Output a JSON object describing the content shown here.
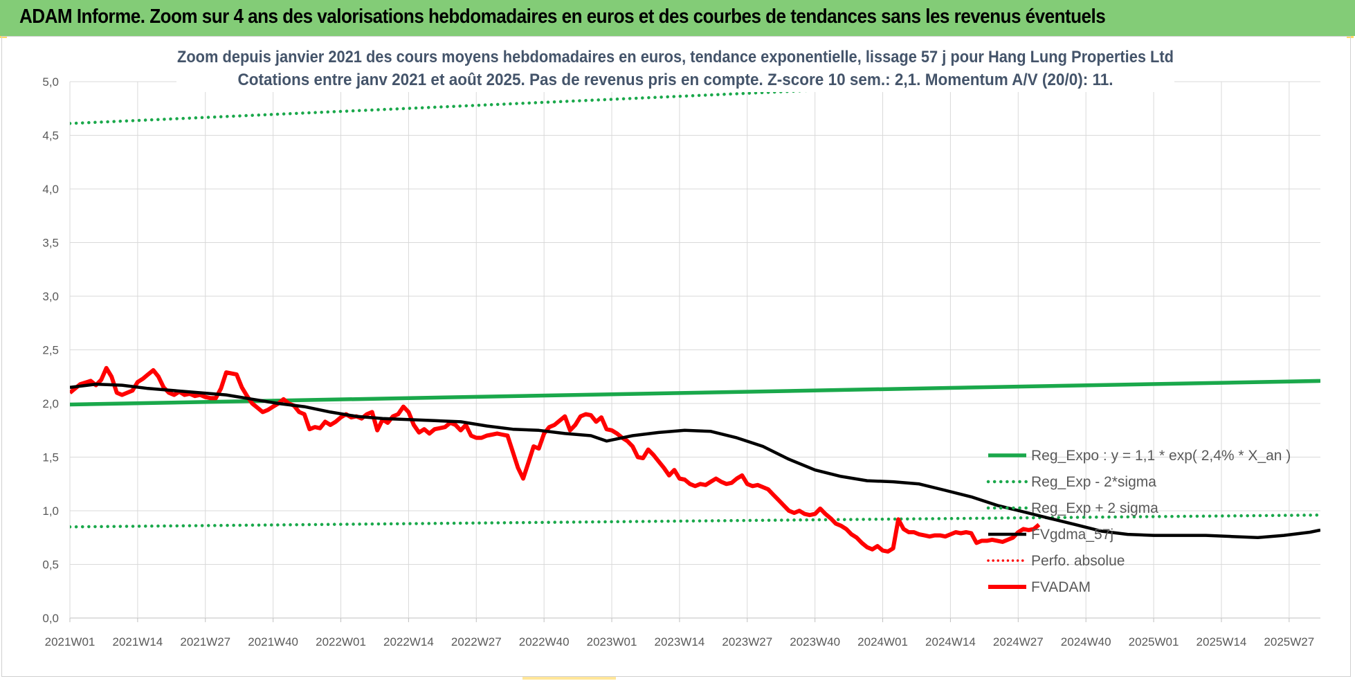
{
  "banner": {
    "title": "ADAM Informe. Zoom sur 4 ans des valorisations hebdomadaires en euros et des courbes de tendances sans les revenus éventuels"
  },
  "colors": {
    "banner_bg": "#83cc77",
    "trend_green": "#1aa84b",
    "smooth_black": "#000000",
    "price_red": "#ff0000",
    "perfo_red": "#ff0000",
    "title_text": "#44546a"
  },
  "chart_data": {
    "type": "line",
    "title_lines": [
      "Zoom depuis janvier 2021 des cours moyens hebdomadaires en euros, tendance exponentielle, lissage 57 j pour Hang Lung Properties Ltd",
      "Cotations entre janv 2021 et août 2025.  Pas de revenus pris en compte. Z-score 10 sem.: 2,1. Momentum A/V (20/0): 11."
    ],
    "x_tick_labels": [
      "2021W01",
      "2021W14",
      "2021W27",
      "2021W40",
      "2022W01",
      "2022W14",
      "2022W27",
      "2022W40",
      "2023W01",
      "2023W14",
      "2023W27",
      "2023W40",
      "2024W01",
      "2024W14",
      "2024W27",
      "2024W40",
      "2025W01",
      "2025W14",
      "2025W27"
    ],
    "y_tick_labels": [
      "0,0",
      "0,5",
      "1,0",
      "1,5",
      "2,0",
      "2,5",
      "3,0",
      "3,5",
      "4,0",
      "4,5",
      "5,0"
    ],
    "ylim": [
      0,
      5
    ],
    "x_range_weeks": [
      0,
      240
    ],
    "grid": true,
    "legend_position": "right, lower-middle",
    "series": [
      {
        "name": "Reg_Expo : y = 1,1 * exp( 2,4% *  X_an )",
        "style": "solid-thick-green",
        "points": [
          [
            0,
            1.99
          ],
          [
            240,
            2.21
          ]
        ]
      },
      {
        "name": "Reg_Exp - 2*sigma",
        "style": "dotted-green",
        "points": [
          [
            0,
            0.85
          ],
          [
            240,
            0.96
          ]
        ]
      },
      {
        "name": "Reg_Exp + 2 sigma",
        "style": "dotted-green",
        "points": [
          [
            0,
            4.61
          ],
          [
            240,
            5.13
          ]
        ]
      },
      {
        "name": "FVgdma_57j",
        "style": "solid-black",
        "points": [
          [
            0,
            2.15
          ],
          [
            5,
            2.18
          ],
          [
            10,
            2.17
          ],
          [
            15,
            2.14
          ],
          [
            20,
            2.12
          ],
          [
            25,
            2.1
          ],
          [
            30,
            2.08
          ],
          [
            35,
            2.04
          ],
          [
            40,
            2.0
          ],
          [
            45,
            1.97
          ],
          [
            50,
            1.92
          ],
          [
            55,
            1.88
          ],
          [
            60,
            1.86
          ],
          [
            65,
            1.85
          ],
          [
            70,
            1.84
          ],
          [
            75,
            1.83
          ],
          [
            80,
            1.79
          ],
          [
            85,
            1.76
          ],
          [
            90,
            1.75
          ],
          [
            95,
            1.72
          ],
          [
            100,
            1.7
          ],
          [
            103,
            1.65
          ],
          [
            108,
            1.7
          ],
          [
            113,
            1.73
          ],
          [
            118,
            1.75
          ],
          [
            123,
            1.74
          ],
          [
            128,
            1.68
          ],
          [
            133,
            1.6
          ],
          [
            138,
            1.48
          ],
          [
            143,
            1.38
          ],
          [
            148,
            1.32
          ],
          [
            153,
            1.28
          ],
          [
            158,
            1.27
          ],
          [
            163,
            1.25
          ],
          [
            168,
            1.19
          ],
          [
            173,
            1.13
          ],
          [
            178,
            1.05
          ],
          [
            183,
            0.99
          ],
          [
            188,
            0.93
          ],
          [
            193,
            0.87
          ],
          [
            198,
            0.81
          ],
          [
            203,
            0.78
          ],
          [
            208,
            0.77
          ],
          [
            213,
            0.77
          ],
          [
            218,
            0.77
          ],
          [
            223,
            0.76
          ],
          [
            228,
            0.75
          ],
          [
            233,
            0.77
          ],
          [
            238,
            0.8
          ],
          [
            240,
            0.82
          ]
        ]
      },
      {
        "name": "Perfo. absolue",
        "style": "dotted-red",
        "points": []
      },
      {
        "name": "FVADAM",
        "style": "solid-thick-red",
        "points": [
          [
            0,
            2.1
          ],
          [
            2,
            2.18
          ],
          [
            4,
            2.21
          ],
          [
            5,
            2.17
          ],
          [
            6,
            2.22
          ],
          [
            7,
            2.33
          ],
          [
            8,
            2.25
          ],
          [
            9,
            2.1
          ],
          [
            10,
            2.08
          ],
          [
            11,
            2.1
          ],
          [
            12,
            2.12
          ],
          [
            13,
            2.2
          ],
          [
            14,
            2.23
          ],
          [
            15,
            2.27
          ],
          [
            16,
            2.31
          ],
          [
            17,
            2.25
          ],
          [
            18,
            2.15
          ],
          [
            19,
            2.1
          ],
          [
            20,
            2.08
          ],
          [
            21,
            2.11
          ],
          [
            22,
            2.08
          ],
          [
            23,
            2.09
          ],
          [
            24,
            2.07
          ],
          [
            25,
            2.08
          ],
          [
            26,
            2.06
          ],
          [
            27,
            2.05
          ],
          [
            28,
            2.05
          ],
          [
            29,
            2.14
          ],
          [
            30,
            2.29
          ],
          [
            31,
            2.28
          ],
          [
            32,
            2.27
          ],
          [
            33,
            2.15
          ],
          [
            34,
            2.07
          ],
          [
            35,
            2.0
          ],
          [
            36,
            1.96
          ],
          [
            37,
            1.92
          ],
          [
            38,
            1.94
          ],
          [
            39,
            1.97
          ],
          [
            40,
            2.0
          ],
          [
            41,
            2.04
          ],
          [
            42,
            2.0
          ],
          [
            43,
            1.98
          ],
          [
            44,
            1.92
          ],
          [
            45,
            1.9
          ],
          [
            46,
            1.76
          ],
          [
            47,
            1.78
          ],
          [
            48,
            1.77
          ],
          [
            49,
            1.83
          ],
          [
            50,
            1.8
          ],
          [
            51,
            1.83
          ],
          [
            52,
            1.87
          ],
          [
            53,
            1.9
          ],
          [
            54,
            1.87
          ],
          [
            55,
            1.88
          ],
          [
            56,
            1.86
          ],
          [
            57,
            1.9
          ],
          [
            58,
            1.92
          ],
          [
            59,
            1.75
          ],
          [
            60,
            1.85
          ],
          [
            61,
            1.82
          ],
          [
            62,
            1.88
          ],
          [
            63,
            1.9
          ],
          [
            64,
            1.97
          ],
          [
            65,
            1.92
          ],
          [
            66,
            1.8
          ],
          [
            67,
            1.73
          ],
          [
            68,
            1.76
          ],
          [
            69,
            1.72
          ],
          [
            70,
            1.76
          ],
          [
            71,
            1.77
          ],
          [
            72,
            1.78
          ],
          [
            73,
            1.82
          ],
          [
            74,
            1.8
          ],
          [
            75,
            1.75
          ],
          [
            76,
            1.8
          ],
          [
            77,
            1.7
          ],
          [
            78,
            1.68
          ],
          [
            79,
            1.68
          ],
          [
            80,
            1.7
          ],
          [
            81,
            1.71
          ],
          [
            82,
            1.72
          ],
          [
            83,
            1.71
          ],
          [
            84,
            1.7
          ],
          [
            85,
            1.55
          ],
          [
            86,
            1.4
          ],
          [
            87,
            1.3
          ],
          [
            88,
            1.45
          ],
          [
            89,
            1.6
          ],
          [
            90,
            1.58
          ],
          [
            91,
            1.72
          ],
          [
            92,
            1.78
          ],
          [
            93,
            1.8
          ],
          [
            94,
            1.84
          ],
          [
            95,
            1.88
          ],
          [
            96,
            1.75
          ],
          [
            97,
            1.8
          ],
          [
            98,
            1.88
          ],
          [
            99,
            1.9
          ],
          [
            100,
            1.89
          ],
          [
            101,
            1.83
          ],
          [
            102,
            1.87
          ],
          [
            103,
            1.76
          ],
          [
            104,
            1.75
          ],
          [
            105,
            1.72
          ],
          [
            106,
            1.68
          ],
          [
            107,
            1.65
          ],
          [
            108,
            1.6
          ],
          [
            109,
            1.5
          ],
          [
            110,
            1.49
          ],
          [
            111,
            1.57
          ],
          [
            112,
            1.52
          ],
          [
            113,
            1.46
          ],
          [
            114,
            1.4
          ],
          [
            115,
            1.33
          ],
          [
            116,
            1.38
          ],
          [
            117,
            1.3
          ],
          [
            118,
            1.29
          ],
          [
            119,
            1.25
          ],
          [
            120,
            1.23
          ],
          [
            121,
            1.25
          ],
          [
            122,
            1.24
          ],
          [
            123,
            1.27
          ],
          [
            124,
            1.3
          ],
          [
            125,
            1.27
          ],
          [
            126,
            1.25
          ],
          [
            127,
            1.26
          ],
          [
            128,
            1.3
          ],
          [
            129,
            1.33
          ],
          [
            130,
            1.25
          ],
          [
            131,
            1.23
          ],
          [
            132,
            1.24
          ],
          [
            133,
            1.22
          ],
          [
            134,
            1.2
          ],
          [
            135,
            1.15
          ],
          [
            136,
            1.1
          ],
          [
            137,
            1.05
          ],
          [
            138,
            1.0
          ],
          [
            139,
            0.98
          ],
          [
            140,
            1.0
          ],
          [
            141,
            0.97
          ],
          [
            142,
            0.96
          ],
          [
            143,
            0.97
          ],
          [
            144,
            1.02
          ],
          [
            145,
            0.97
          ],
          [
            146,
            0.93
          ],
          [
            147,
            0.88
          ],
          [
            148,
            0.86
          ],
          [
            149,
            0.83
          ],
          [
            150,
            0.78
          ],
          [
            151,
            0.75
          ],
          [
            152,
            0.7
          ],
          [
            153,
            0.66
          ],
          [
            154,
            0.64
          ],
          [
            155,
            0.67
          ],
          [
            156,
            0.63
          ],
          [
            157,
            0.62
          ],
          [
            158,
            0.65
          ],
          [
            159,
            0.92
          ],
          [
            160,
            0.83
          ],
          [
            161,
            0.8
          ],
          [
            162,
            0.8
          ],
          [
            163,
            0.78
          ],
          [
            164,
            0.77
          ],
          [
            165,
            0.76
          ],
          [
            166,
            0.77
          ],
          [
            167,
            0.77
          ],
          [
            168,
            0.76
          ],
          [
            169,
            0.78
          ],
          [
            170,
            0.8
          ],
          [
            171,
            0.79
          ],
          [
            172,
            0.8
          ],
          [
            173,
            0.79
          ],
          [
            174,
            0.7
          ],
          [
            175,
            0.72
          ],
          [
            176,
            0.72
          ],
          [
            177,
            0.73
          ],
          [
            178,
            0.72
          ],
          [
            179,
            0.71
          ],
          [
            180,
            0.73
          ],
          [
            181,
            0.75
          ],
          [
            182,
            0.8
          ],
          [
            183,
            0.83
          ],
          [
            184,
            0.82
          ],
          [
            185,
            0.83
          ],
          [
            186,
            0.87
          ]
        ]
      }
    ]
  }
}
